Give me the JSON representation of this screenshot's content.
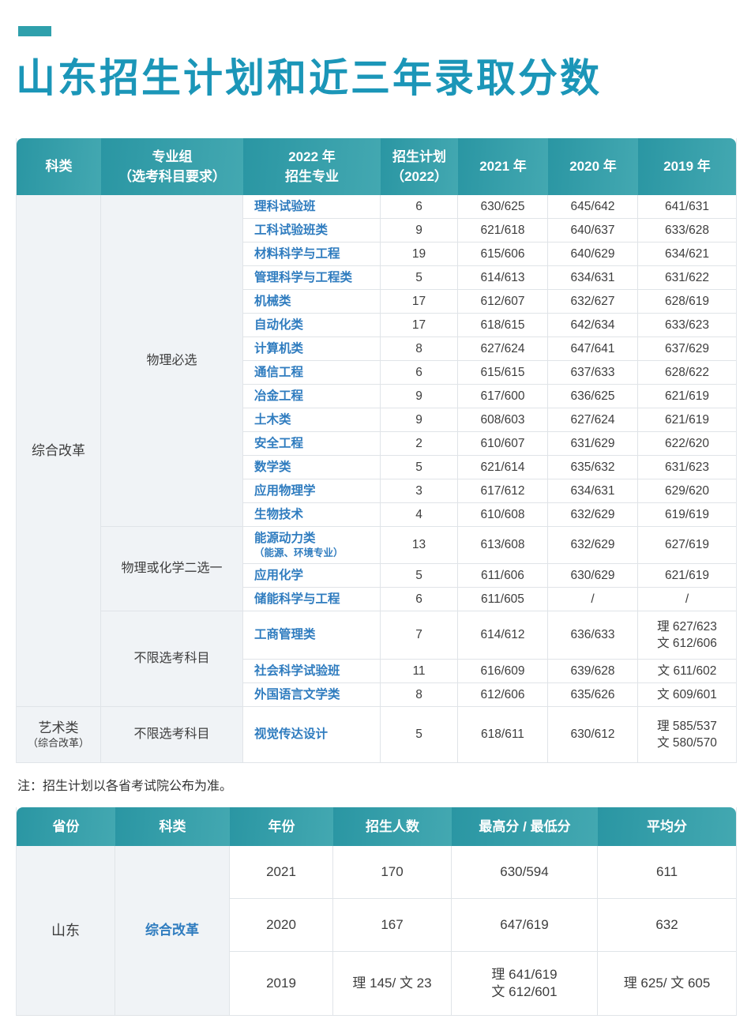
{
  "page": {
    "title": "山东招生计划和近三年录取分数",
    "note": "注：招生计划以各省考试院公布为准。"
  },
  "colors": {
    "accent_bar": "#2FA0AC",
    "title_text": "#1B96B8",
    "header_gradient_start": "#2A96A3",
    "header_gradient_end": "#43A8B1",
    "major_link_blue": "#2F7CBF",
    "shaded_column_bg": "#F0F3F6",
    "border": "#E0E4E8"
  },
  "main_table": {
    "headers": {
      "category": "科类",
      "group_l1": "专业组",
      "group_l2": "（选考科目要求）",
      "major_l1": "2022 年",
      "major_l2": "招生专业",
      "plan_l1": "招生计划",
      "plan_l2": "（2022）",
      "y2021": "2021 年",
      "y2020": "2020 年",
      "y2019": "2019 年"
    },
    "groups": [
      {
        "category": "综合改革",
        "subgroups": [
          {
            "requirement": "物理必选",
            "rows": [
              {
                "major": "理科试验班",
                "plan": "6",
                "s2021": "630/625",
                "s2020": "645/642",
                "s2019": "641/631"
              },
              {
                "major": "工科试验班类",
                "plan": "9",
                "s2021": "621/618",
                "s2020": "640/637",
                "s2019": "633/628"
              },
              {
                "major": "材料科学与工程",
                "plan": "19",
                "s2021": "615/606",
                "s2020": "640/629",
                "s2019": "634/621"
              },
              {
                "major": "管理科学与工程类",
                "plan": "5",
                "s2021": "614/613",
                "s2020": "634/631",
                "s2019": "631/622"
              },
              {
                "major": "机械类",
                "plan": "17",
                "s2021": "612/607",
                "s2020": "632/627",
                "s2019": "628/619"
              },
              {
                "major": "自动化类",
                "plan": "17",
                "s2021": "618/615",
                "s2020": "642/634",
                "s2019": "633/623"
              },
              {
                "major": "计算机类",
                "plan": "8",
                "s2021": "627/624",
                "s2020": "647/641",
                "s2019": "637/629"
              },
              {
                "major": "通信工程",
                "plan": "6",
                "s2021": "615/615",
                "s2020": "637/633",
                "s2019": "628/622"
              },
              {
                "major": "冶金工程",
                "plan": "9",
                "s2021": "617/600",
                "s2020": "636/625",
                "s2019": "621/619"
              },
              {
                "major": "土木类",
                "plan": "9",
                "s2021": "608/603",
                "s2020": "627/624",
                "s2019": "621/619"
              },
              {
                "major": "安全工程",
                "plan": "2",
                "s2021": "610/607",
                "s2020": "631/629",
                "s2019": "622/620"
              },
              {
                "major": "数学类",
                "plan": "5",
                "s2021": "621/614",
                "s2020": "635/632",
                "s2019": "631/623"
              },
              {
                "major": "应用物理学",
                "plan": "3",
                "s2021": "617/612",
                "s2020": "634/631",
                "s2019": "629/620"
              },
              {
                "major": "生物技术",
                "plan": "4",
                "s2021": "610/608",
                "s2020": "632/629",
                "s2019": "619/619"
              }
            ]
          },
          {
            "requirement": "物理或化学二选一",
            "rows": [
              {
                "major": "能源动力类",
                "major_sub": "（能源、环境专业）",
                "plan": "13",
                "s2021": "613/608",
                "s2020": "632/629",
                "s2019": "627/619"
              },
              {
                "major": "应用化学",
                "plan": "5",
                "s2021": "611/606",
                "s2020": "630/629",
                "s2019": "621/619"
              },
              {
                "major": "储能科学与工程",
                "plan": "6",
                "s2021": "611/605",
                "s2020": "/",
                "s2019": "/"
              }
            ]
          },
          {
            "requirement": "不限选考科目",
            "rows": [
              {
                "major": "工商管理类",
                "plan": "7",
                "s2021": "614/612",
                "s2020": "636/633",
                "s2019": [
                  "理 627/623",
                  "文 612/606"
                ]
              },
              {
                "major": "社会科学试验班",
                "plan": "11",
                "s2021": "616/609",
                "s2020": "639/628",
                "s2019": "文 611/602"
              },
              {
                "major": "外国语言文学类",
                "plan": "8",
                "s2021": "612/606",
                "s2020": "635/626",
                "s2019": "文 609/601"
              }
            ]
          }
        ]
      },
      {
        "category": "艺术类",
        "category_sub": "（综合改革）",
        "subgroups": [
          {
            "requirement": "不限选考科目",
            "rows": [
              {
                "major": "视觉传达设计",
                "plan": "5",
                "s2021": "618/611",
                "s2020": "630/612",
                "s2019": [
                  "理 585/537",
                  "文 580/570"
                ]
              }
            ]
          }
        ]
      }
    ]
  },
  "province_table": {
    "headers": {
      "province": "省份",
      "category": "科类",
      "year": "年份",
      "count": "招生人数",
      "scores": "最高分 / 最低分",
      "avg": "平均分"
    },
    "province": "山东",
    "category": "综合改革",
    "rows": [
      {
        "year": "2021",
        "count": "170",
        "scores": "630/594",
        "avg": "611"
      },
      {
        "year": "2020",
        "count": "167",
        "scores": "647/619",
        "avg": "632"
      },
      {
        "year": "2019",
        "count": "理 145/ 文 23",
        "scores": [
          "理 641/619",
          "文 612/601"
        ],
        "avg": "理 625/ 文 605"
      }
    ]
  }
}
